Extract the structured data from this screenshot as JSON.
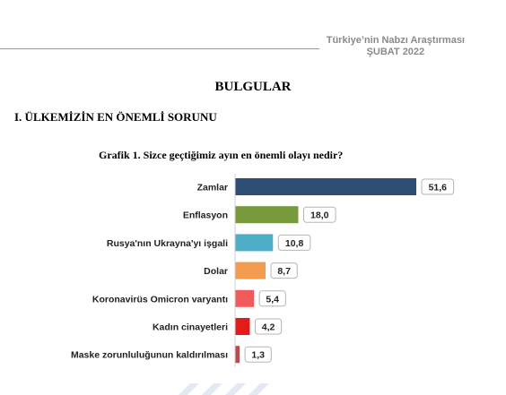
{
  "header": {
    "line1": "Türkiye’nin Nabzı Araştırması",
    "line2": "ŞUBAT 2022"
  },
  "section_title": "BULGULAR",
  "subsection_title": "I. ÜLKEMİZİN EN ÖNEMLİ SORUNU",
  "chart_data": {
    "type": "bar",
    "orientation": "horizontal",
    "title": "Grafik 1. Sizce geçtiğimiz ayın en önemli olayı nedir?",
    "categories": [
      "Zamlar",
      "Enflasyon",
      "Rusya'nın Ukrayna'yı işgali",
      "Dolar",
      "Koronavirüs Omicron varyantı",
      "Kadın cinayetleri",
      "Maske zorunluluğunun kaldırılması"
    ],
    "values": [
      51.6,
      18.0,
      10.8,
      8.7,
      5.4,
      4.2,
      1.3
    ],
    "value_labels": [
      "51,6",
      "18,0",
      "10,8",
      "8,7",
      "5,4",
      "4,2",
      "1,3"
    ],
    "colors": [
      "#2e4d74",
      "#789a3d",
      "#4eaec8",
      "#f39c4f",
      "#f05a5a",
      "#e51b1b",
      "#b84a50"
    ],
    "xlim": [
      0,
      51.6
    ],
    "grid": false,
    "legend": "none"
  }
}
